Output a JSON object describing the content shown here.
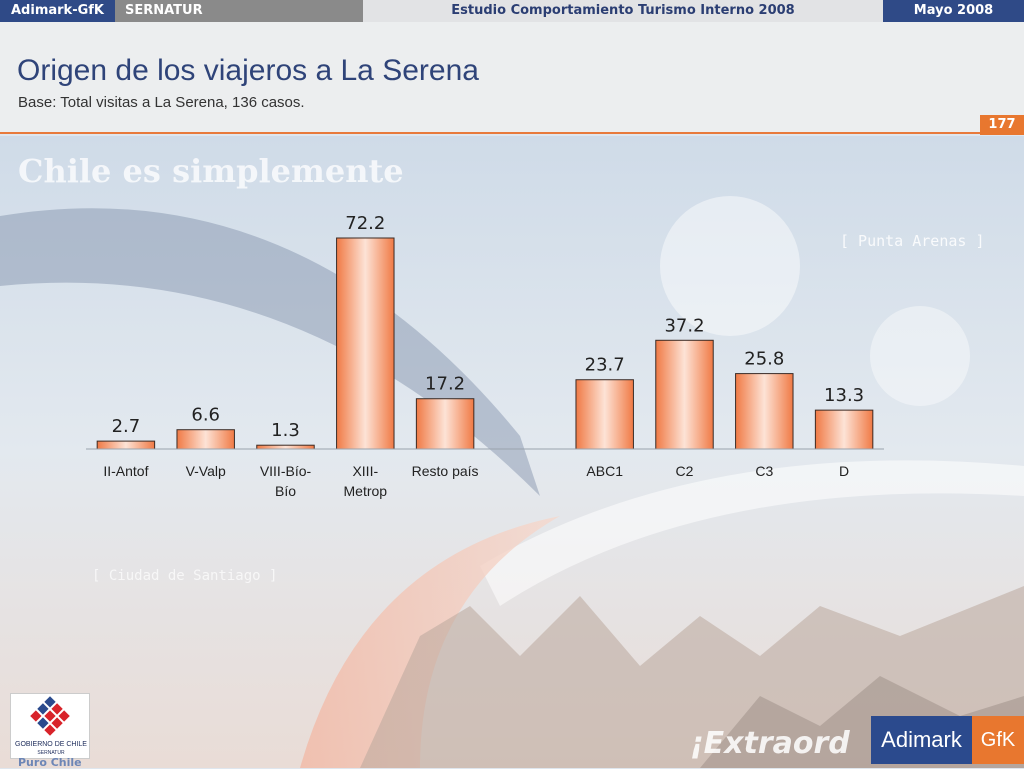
{
  "header": {
    "brand": "Adimark-GfK",
    "client": "SERNATUR",
    "study": "Estudio Comportamiento Turismo Interno 2008",
    "date": "Mayo 2008"
  },
  "slide": {
    "title": "Origen de los viajeros a La Serena",
    "subtitle": "Base: Total visitas a La Serena, 136 casos.",
    "page_number": "177"
  },
  "background": {
    "tagline_top": "Chile es simplemente",
    "label_punta": "[ Punta Arenas ]",
    "label_santiago": "[ Ciudad de Santiago ]",
    "tagline_bottom": "¡Extraord"
  },
  "footer": {
    "gob_line1": "GOBIERNO DE CHILE",
    "gob_line2": "SERNATUR",
    "gob_tagline": "Puro Chile",
    "adimark_left": "Adimark",
    "adimark_right": "GfK"
  },
  "chart_data": {
    "type": "bar",
    "categories": [
      "II-Antof",
      "V-Valp",
      "VIII-Bío-Bío",
      "XIII-Metrop",
      "Resto país",
      "",
      "ABC1",
      "C2",
      "C3",
      "D"
    ],
    "tick_lines": [
      [
        "II-Antof"
      ],
      [
        "V-Valp"
      ],
      [
        "VIII-Bío-",
        "Bío"
      ],
      [
        "XIII-",
        "Metrop"
      ],
      [
        "Resto país"
      ],
      [
        ""
      ],
      [
        "ABC1"
      ],
      [
        "C2"
      ],
      [
        "C3"
      ],
      [
        "D"
      ]
    ],
    "values": [
      2.7,
      6.6,
      1.3,
      72.2,
      17.2,
      null,
      23.7,
      37.2,
      25.8,
      13.3
    ],
    "value_labels": [
      "2.7",
      "6.6",
      "1.3",
      "72.2",
      "17.2",
      "",
      "23.7",
      "37.2",
      "25.8",
      "13.3"
    ],
    "ylim": [
      0,
      72.2
    ],
    "grid": false,
    "bar_color": "#f07a45",
    "bar_highlight": "#fde3d6"
  }
}
